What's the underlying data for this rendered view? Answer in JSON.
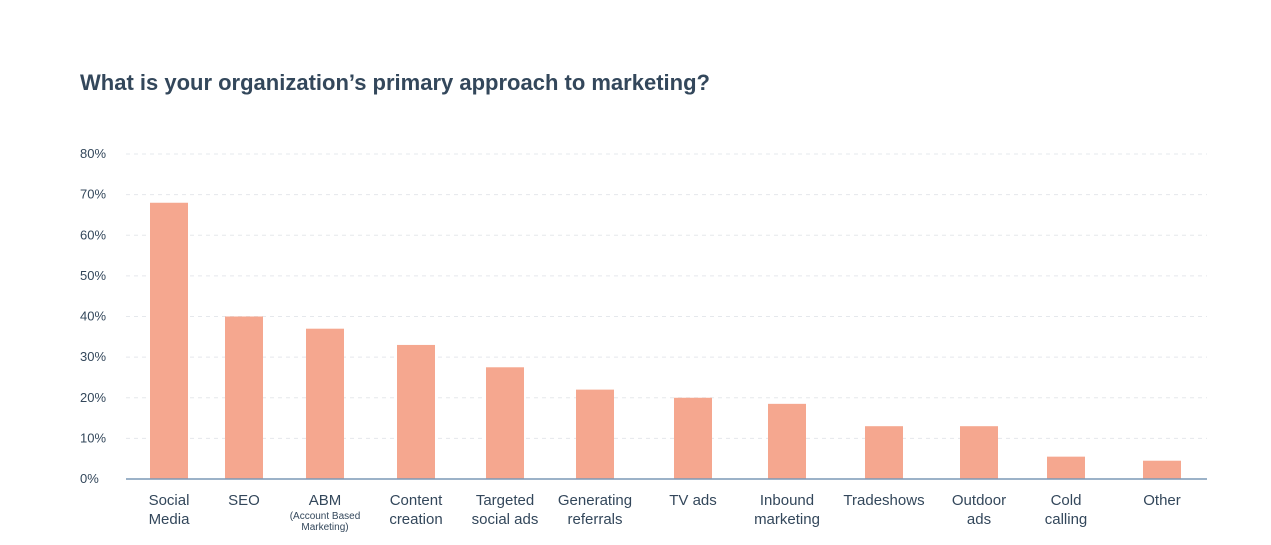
{
  "colors": {
    "bar": "#f5a78f",
    "axis": "#7c98b6",
    "grid": "#e5e8ec",
    "text": "#33475b"
  },
  "chart_data": {
    "type": "bar",
    "title": "What is your organization’s primary approach to marketing?",
    "xlabel": "",
    "ylabel": "",
    "ylim": [
      0,
      80
    ],
    "yticks": [
      0,
      10,
      20,
      30,
      40,
      50,
      60,
      70,
      80
    ],
    "ytick_labels": [
      "0%",
      "10%",
      "20%",
      "30%",
      "40%",
      "50%",
      "60%",
      "70%",
      "80%"
    ],
    "grid": true,
    "categories": [
      {
        "lines": [
          "Social",
          "Media"
        ],
        "sub": []
      },
      {
        "lines": [
          "SEO"
        ],
        "sub": []
      },
      {
        "lines": [
          "ABM"
        ],
        "sub": [
          "(Account Based",
          "Marketing)"
        ]
      },
      {
        "lines": [
          "Content",
          "creation"
        ],
        "sub": []
      },
      {
        "lines": [
          "Targeted",
          "social ads"
        ],
        "sub": []
      },
      {
        "lines": [
          "Generating",
          "referrals"
        ],
        "sub": []
      },
      {
        "lines": [
          "TV ads"
        ],
        "sub": []
      },
      {
        "lines": [
          "Inbound",
          "marketing"
        ],
        "sub": []
      },
      {
        "lines": [
          "Tradeshows"
        ],
        "sub": []
      },
      {
        "lines": [
          "Outdoor",
          "ads"
        ],
        "sub": []
      },
      {
        "lines": [
          "Cold",
          "calling"
        ],
        "sub": []
      },
      {
        "lines": [
          "Other"
        ],
        "sub": []
      }
    ],
    "values": [
      68,
      40,
      37,
      33,
      27.5,
      22,
      20,
      18.5,
      13,
      13,
      5.5,
      4.5
    ]
  }
}
